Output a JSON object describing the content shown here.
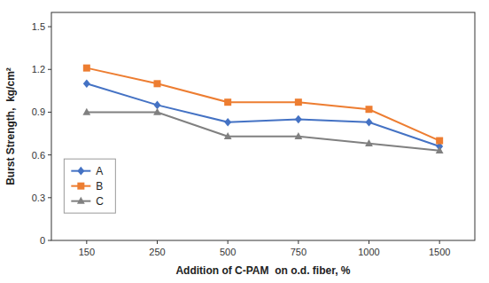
{
  "chart_data": {
    "type": "line",
    "categories": [
      "150",
      "250",
      "500",
      "750",
      "1000",
      "1500"
    ],
    "series": [
      {
        "name": "A",
        "color": "#4472C4",
        "marker": "diamond",
        "values": [
          1.1,
          0.95,
          0.83,
          0.85,
          0.83,
          0.66
        ]
      },
      {
        "name": "B",
        "color": "#ED7D31",
        "marker": "square",
        "values": [
          1.21,
          1.1,
          0.97,
          0.97,
          0.92,
          0.7
        ]
      },
      {
        "name": "C",
        "color": "#808080",
        "marker": "triangle",
        "values": [
          0.9,
          0.9,
          0.73,
          0.73,
          0.68,
          0.63
        ]
      }
    ],
    "xlabel": "Addition of C-PAM  on o.d. fiber, %",
    "ylabel": "Burst Strength,  kg/cm²",
    "ylim": [
      0,
      1.6
    ],
    "yticks": [
      0,
      0.3,
      0.6,
      0.9,
      1.2,
      1.5
    ],
    "grid": false,
    "legend": "lower left"
  }
}
